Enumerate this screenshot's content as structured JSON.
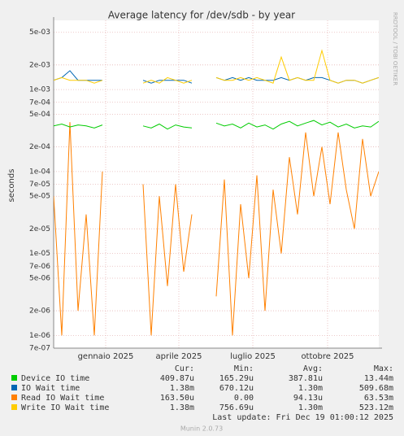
{
  "chart_data": {
    "type": "line",
    "title": "Average latency for /dev/sdb - by year",
    "y_label": "seconds",
    "log_scale": true,
    "grid": true,
    "side_text": "RRDTOOL / TOBI OETIKER",
    "footer": "Last update: Fri Dec 19 01:00:12 2025",
    "credit": "Munin 2.0.73",
    "xlim": [
      -49,
      351
    ],
    "xticks": [
      {
        "value": 15,
        "label": "gennaio 2025"
      },
      {
        "value": 105,
        "label": "aprile 2025"
      },
      {
        "value": 196,
        "label": "luglio 2025"
      },
      {
        "value": 288,
        "label": "ottobre 2025"
      }
    ],
    "ylim": [
      7e-07,
      0.007
    ],
    "yticks": [
      {
        "value": 0.005,
        "label": "5e-03"
      },
      {
        "value": 0.002,
        "label": "2e-03"
      },
      {
        "value": 0.001,
        "label": "1e-03"
      },
      {
        "value": 0.0007,
        "label": "7e-04"
      },
      {
        "value": 0.0005,
        "label": "5e-04"
      },
      {
        "value": 0.0002,
        "label": "2e-04"
      },
      {
        "value": 0.0001,
        "label": "1e-04"
      },
      {
        "value": 7e-05,
        "label": "7e-05"
      },
      {
        "value": 5e-05,
        "label": "5e-05"
      },
      {
        "value": 2e-05,
        "label": "2e-05"
      },
      {
        "value": 1e-05,
        "label": "1e-05"
      },
      {
        "value": 7e-06,
        "label": "7e-06"
      },
      {
        "value": 5e-06,
        "label": "5e-06"
      },
      {
        "value": 2e-06,
        "label": "2e-06"
      },
      {
        "value": 1e-06,
        "label": "1e-06"
      },
      {
        "value": 7e-07,
        "label": "7e-07"
      }
    ],
    "stats_headers": [
      "Cur:",
      "Min:",
      "Avg:",
      "Max:"
    ],
    "x": [
      -49,
      -39,
      -29,
      -19,
      -9,
      1,
      11,
      21,
      31,
      41,
      51,
      61,
      71,
      81,
      91,
      101,
      111,
      121,
      131,
      141,
      151,
      161,
      171,
      181,
      191,
      201,
      211,
      221,
      231,
      241,
      251,
      261,
      271,
      281,
      291,
      301,
      311,
      321,
      331,
      341,
      351
    ],
    "series": [
      {
        "name": "Device IO time",
        "color": "#00cc00",
        "stats": [
          "409.87u",
          "165.29u",
          "387.81u",
          "13.44m"
        ],
        "values": [
          0.00036,
          0.00038,
          0.00035,
          0.00037,
          0.00036,
          0.00034,
          0.00037,
          null,
          null,
          null,
          null,
          0.00036,
          0.00034,
          0.00038,
          0.00033,
          0.00037,
          0.00035,
          0.00034,
          null,
          null,
          0.00039,
          0.00036,
          0.00038,
          0.00034,
          0.00039,
          0.00035,
          0.00037,
          0.00033,
          0.00038,
          0.00041,
          0.00036,
          0.00039,
          0.00042,
          0.00037,
          0.0004,
          0.00035,
          0.00038,
          0.00034,
          0.00036,
          0.00035,
          0.00041
        ]
      },
      {
        "name": "IO Wait time",
        "color": "#0066b3",
        "stats": [
          "1.38m",
          "670.12u",
          "1.30m",
          "509.68m"
        ],
        "values": [
          0.0013,
          0.0014,
          0.0017,
          0.0013,
          0.0013,
          0.0013,
          0.0013,
          null,
          null,
          null,
          null,
          0.0013,
          0.0012,
          0.0013,
          0.0013,
          0.0013,
          0.0013,
          0.0012,
          null,
          null,
          0.0014,
          0.0013,
          0.0014,
          0.0013,
          0.0014,
          0.0013,
          0.0013,
          0.0013,
          0.0014,
          0.0013,
          0.0014,
          0.0013,
          0.0014,
          0.0014,
          0.0013,
          0.0012,
          0.0013,
          0.0013,
          0.0012,
          0.0013,
          0.0014
        ]
      },
      {
        "name": "Read IO Wait time",
        "color": "#ff8000",
        "stats": [
          "163.50u",
          "0.00",
          "94.13u",
          "63.53m"
        ],
        "values": [
          5e-05,
          1e-06,
          0.0004,
          2e-06,
          3e-05,
          1e-06,
          0.0001,
          null,
          null,
          null,
          null,
          7e-05,
          1e-06,
          5e-05,
          4e-06,
          7e-05,
          6e-06,
          3e-05,
          null,
          null,
          3e-06,
          8e-05,
          1e-06,
          4e-05,
          5e-06,
          9e-05,
          2e-06,
          6e-05,
          1e-05,
          0.00015,
          3e-05,
          0.0003,
          5e-05,
          0.0002,
          4e-05,
          0.0003,
          6e-05,
          2e-05,
          0.00025,
          5e-05,
          0.0001
        ]
      },
      {
        "name": "Write IO Wait time",
        "color": "#ffcc00",
        "stats": [
          "1.38m",
          "756.69u",
          "1.30m",
          "523.12m"
        ],
        "values": [
          0.0013,
          0.0014,
          0.0013,
          0.0013,
          0.0013,
          0.0012,
          0.0013,
          null,
          null,
          null,
          null,
          0.0012,
          0.0013,
          0.0012,
          0.0014,
          0.0013,
          0.0012,
          0.0013,
          null,
          null,
          0.0014,
          0.0013,
          0.0013,
          0.0014,
          0.0013,
          0.0014,
          0.0013,
          0.0012,
          0.0025,
          0.0013,
          0.0014,
          0.0013,
          0.0013,
          0.003,
          0.0013,
          0.0012,
          0.0013,
          0.0013,
          0.0012,
          0.0013,
          0.0014
        ]
      }
    ]
  }
}
